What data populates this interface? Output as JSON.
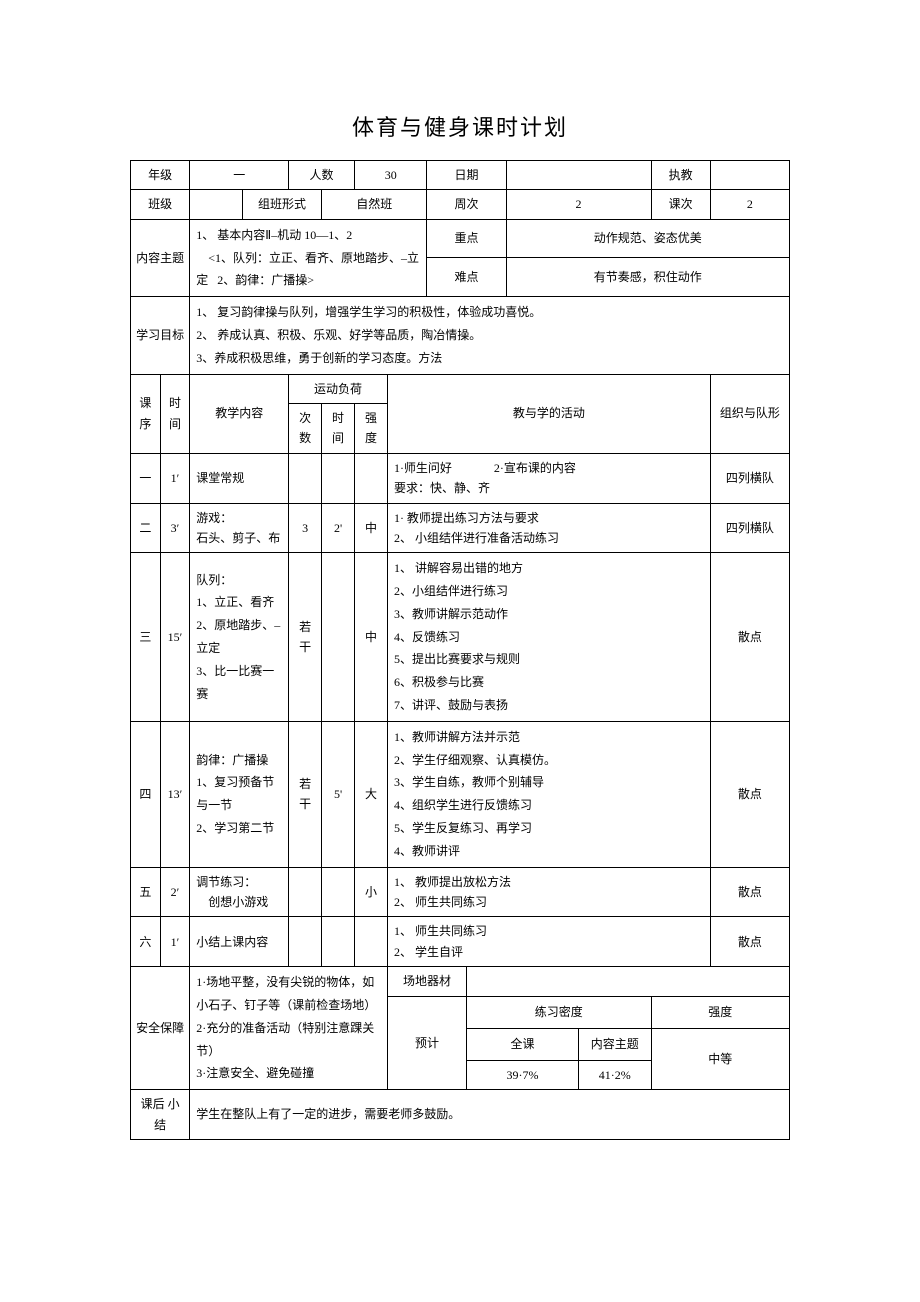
{
  "title": "体育与健身课时计划",
  "header": {
    "grade_label": "年级",
    "grade_value": "一",
    "count_label": "人数",
    "count_value": "30",
    "date_label": "日期",
    "date_value": "",
    "teacher_label": "执教",
    "teacher_value": "",
    "class_label": "班级",
    "class_value": "",
    "form_label": "组班形式",
    "form_value": "自然班",
    "week_label": "周次",
    "week_value": "2",
    "lesson_label": "课次",
    "lesson_value": "2"
  },
  "content": {
    "label": "内容主题",
    "text": "1、 基本内容Ⅱ–机动 10—1、2\n    <1、队列：立正、看齐、原地踏步、–立定   2、韵律：广播操>",
    "keypoint_label": "重点",
    "keypoint_value": "动作规范、姿态优美",
    "difficulty_label": "难点",
    "difficulty_value": "有节奏感，积住动作"
  },
  "goals": {
    "label": "学习目标",
    "text": "1、 复习韵律操与队列，增强学生学习的积极性，体验成功喜悦。\n2、 养成认真、积极、乐观、好学等品质，陶冶情操。\n3、养成积极思维，勇于创新的学习态度。方法"
  },
  "tableHeader": {
    "seq": "课序",
    "time": "时间",
    "teachContent": "教学内容",
    "load": "运动负荷",
    "times": "次数",
    "duration": "时间",
    "intensity": "强度",
    "activity": "教与学的活动",
    "formation": "组织与队形"
  },
  "rows": [
    {
      "seq": "一",
      "time": "1′",
      "content": "课堂常规",
      "times": "",
      "duration": "",
      "intensity": "",
      "activity": "1·师生问好              2·宣布课的内容\n要求：快、静、齐",
      "formation": "四列横队"
    },
    {
      "seq": "二",
      "time": "3′",
      "content": "游戏：\n石头、剪子、布",
      "times": "3",
      "duration": "2'",
      "intensity": "中",
      "activity": "1· 教师提出练习方法与要求\n2、 小组结伴进行准备活动练习",
      "formation": "四列横队"
    },
    {
      "seq": "三",
      "time": "15′",
      "content": "队列：\n1、立正、看齐\n2、原地踏步、–立定\n3、比一比赛一赛",
      "times": "若干",
      "duration": "",
      "intensity": "中",
      "activity": "1、 讲解容易出错的地方\n2、小组结伴进行练习\n3、教师讲解示范动作\n4、反馈练习\n5、提出比赛要求与规则\n6、积极参与比赛\n7、讲评、鼓励与表扬",
      "formation": "散点"
    },
    {
      "seq": "四",
      "time": "13′",
      "content": "韵律：广播操\n1、复习预备节\n与一节\n2、学习第二节",
      "times": "若干",
      "duration": "5'",
      "intensity": "大",
      "activity": "1、教师讲解方法并示范\n2、学生仔细观察、认真模仿。\n3、学生自练，教师个别辅导\n4、组织学生进行反馈练习\n5、学生反复练习、再学习\n4、教师讲评",
      "formation": "散点"
    },
    {
      "seq": "五",
      "time": "2′",
      "content": "调节练习：\n    创想小游戏",
      "times": "",
      "duration": "",
      "intensity": "小",
      "activity": "1、 教师提出放松方法\n2、 师生共同练习",
      "formation": "散点"
    },
    {
      "seq": "六",
      "time": "1′",
      "content": "小结上课内容",
      "times": "",
      "duration": "",
      "intensity": "",
      "activity": "1、 师生共同练习\n2、 学生自评",
      "formation": "散点"
    }
  ],
  "safety": {
    "label": "安全保障",
    "text": "1·场地平整，没有尖锐的物体，如小石子、钉子等（课前检查场地）\n2·充分的准备活动（特别注意踝关节）\n3·注意安全、避免碰撞",
    "venue_label": "场地器材",
    "venue_value": "",
    "estimate_label": "预计",
    "density_label": "练习密度",
    "intensity_label": "强度",
    "full_label": "全课",
    "full_value": "39·7%",
    "topic_label": "内容主题",
    "topic_value": "41·2%",
    "intensity_value": "中等"
  },
  "summary": {
    "label": "课后 小结",
    "text": "学生在整队上有了一定的进步，需要老师多鼓励。"
  }
}
